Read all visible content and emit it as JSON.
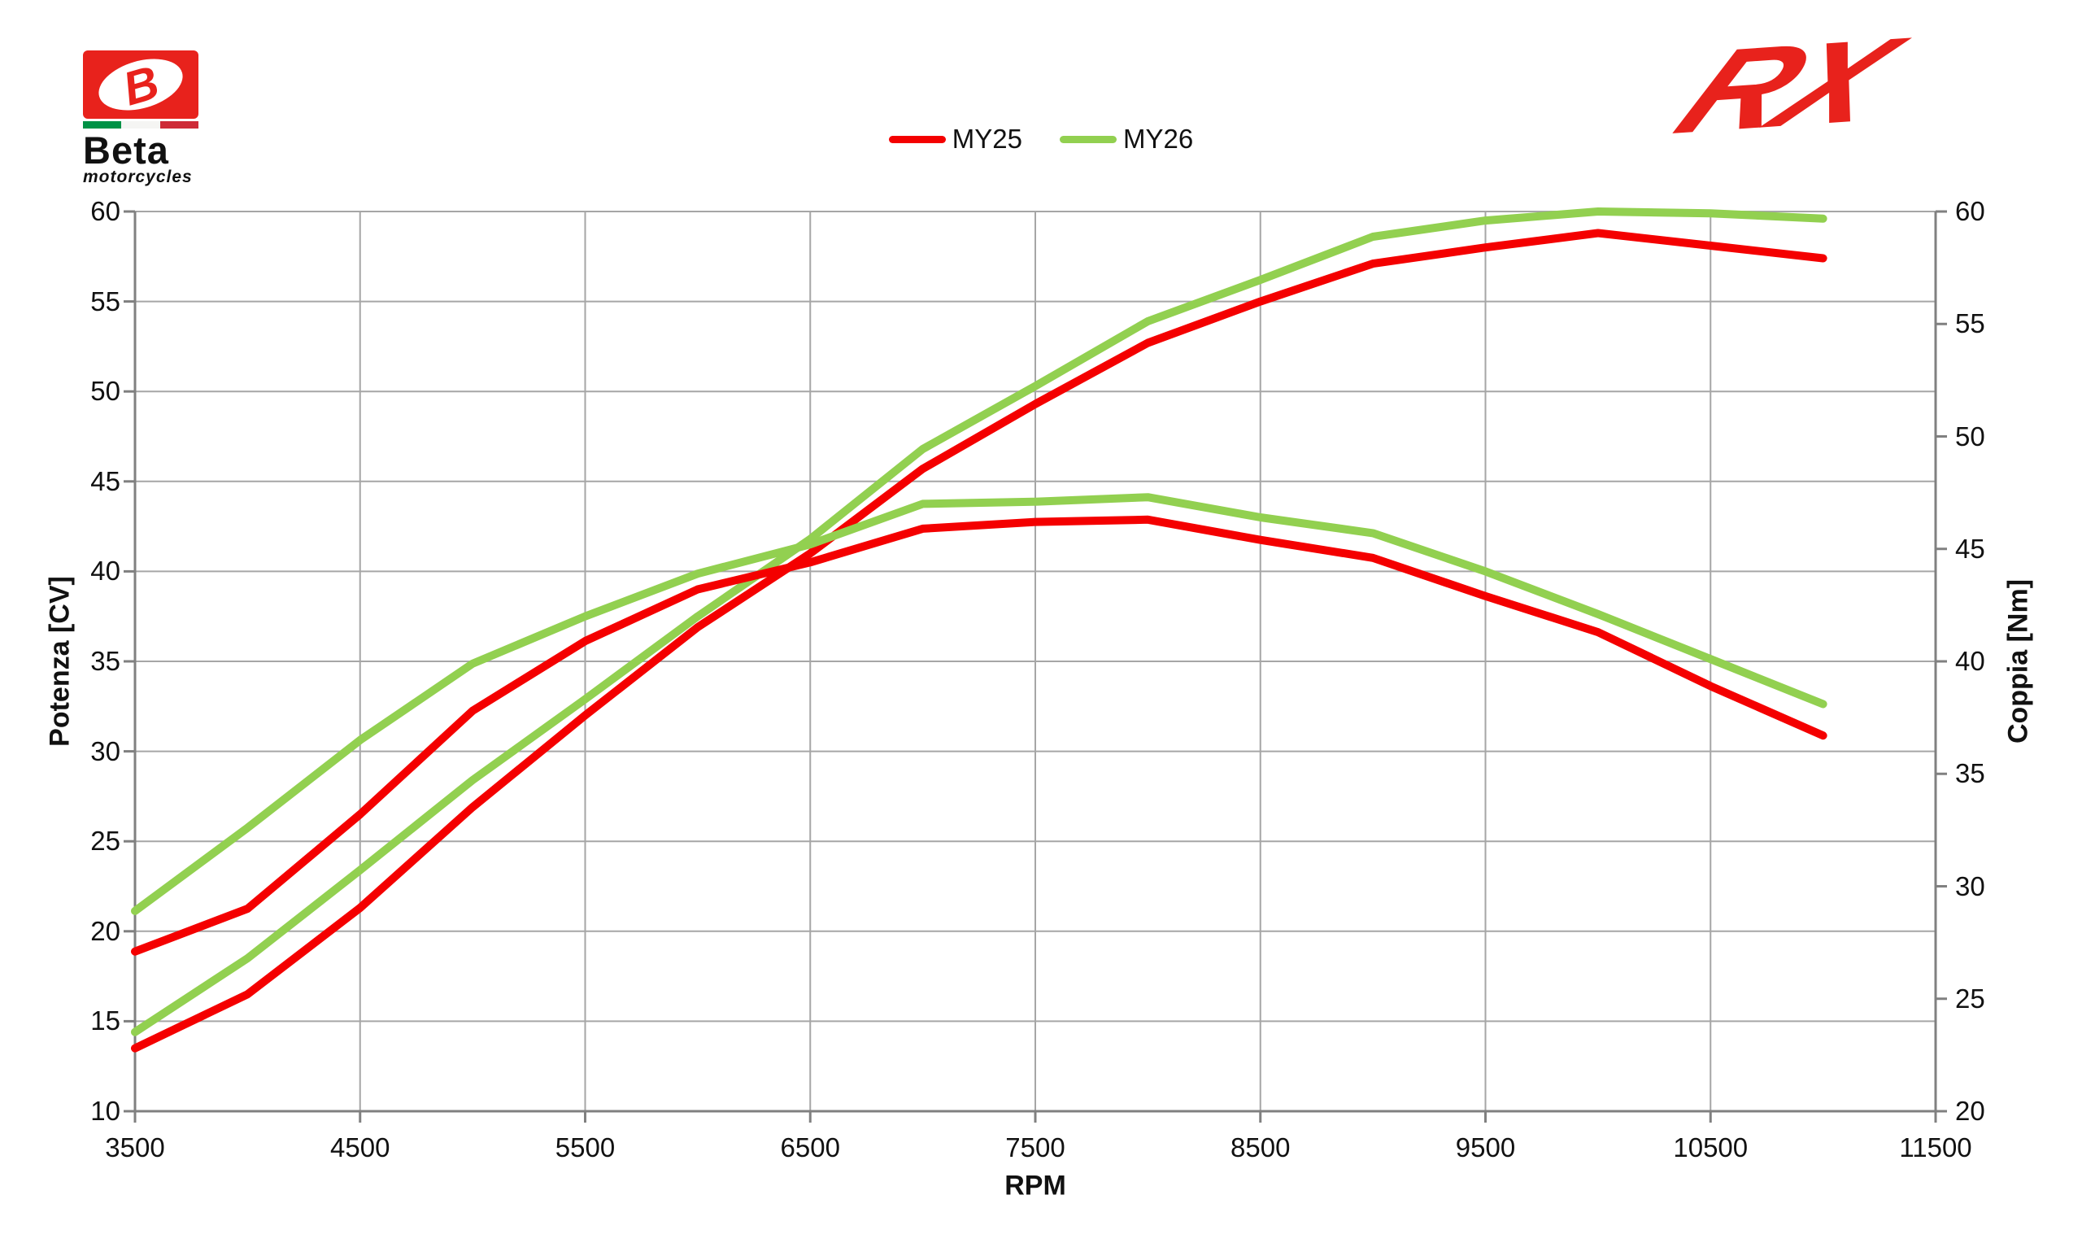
{
  "branding": {
    "beta": {
      "wordmark": "Beta",
      "tagline": "motorcycles",
      "box_color": "#e8221c",
      "emblem_letter": "B",
      "flag_colors": [
        "#009246",
        "#f5f5f3",
        "#ce2b37"
      ]
    },
    "rx": {
      "text": "RX",
      "color": "#e8221c"
    }
  },
  "legend": {
    "items": [
      {
        "label": "MY25",
        "color": "#f40000"
      },
      {
        "label": "MY26",
        "color": "#92d050"
      }
    ]
  },
  "chart_data": {
    "type": "line",
    "title": "",
    "xlabel": "RPM",
    "ylabel": "Potenza [CV]",
    "y2label": "Coppia [Nm]",
    "xlim": [
      3500,
      11500
    ],
    "ylim": [
      10,
      60
    ],
    "y2lim": [
      20,
      60
    ],
    "x_ticks": [
      3500,
      4500,
      5500,
      6500,
      7500,
      8500,
      9500,
      10500,
      11500
    ],
    "y_ticks": [
      10,
      15,
      20,
      25,
      30,
      35,
      40,
      45,
      50,
      55,
      60
    ],
    "y2_ticks": [
      20,
      25,
      30,
      35,
      40,
      45,
      50,
      55,
      60
    ],
    "grid": true,
    "legend_position": "top-center",
    "grid_color": "#a6a6a6",
    "axis_color": "#808080",
    "x": [
      3500,
      4000,
      4500,
      5000,
      5500,
      6000,
      6500,
      7000,
      7500,
      8000,
      8500,
      9000,
      9500,
      10000,
      10500,
      11000
    ],
    "series": [
      {
        "name": "MY25 Potenza",
        "model": "MY25",
        "axis": "left",
        "unit": "CV",
        "color": "#f40000",
        "values": [
          13.5,
          16.5,
          21.3,
          26.9,
          32.0,
          36.9,
          41.0,
          45.7,
          49.3,
          52.7,
          55.0,
          57.1,
          58.0,
          58.8,
          58.1,
          57.4
        ]
      },
      {
        "name": "MY26 Potenza",
        "model": "MY26",
        "axis": "left",
        "unit": "CV",
        "color": "#92d050",
        "values": [
          14.4,
          18.5,
          23.4,
          28.4,
          32.9,
          37.5,
          41.8,
          46.8,
          50.3,
          53.9,
          56.2,
          58.6,
          59.5,
          60.0,
          59.9,
          59.6
        ]
      },
      {
        "name": "MY25 Coppia",
        "model": "MY25",
        "axis": "right",
        "unit": "Nm",
        "color": "#f40000",
        "values": [
          27.1,
          29.0,
          33.2,
          37.8,
          40.9,
          43.2,
          44.4,
          45.9,
          46.2,
          46.3,
          45.4,
          44.6,
          42.9,
          41.3,
          38.9,
          36.7
        ]
      },
      {
        "name": "MY26 Coppia",
        "model": "MY26",
        "axis": "right",
        "unit": "Nm",
        "color": "#92d050",
        "values": [
          28.9,
          32.6,
          36.5,
          39.9,
          42.0,
          43.9,
          45.2,
          47.0,
          47.1,
          47.3,
          46.4,
          45.7,
          44.0,
          42.1,
          40.1,
          38.1
        ]
      }
    ]
  }
}
